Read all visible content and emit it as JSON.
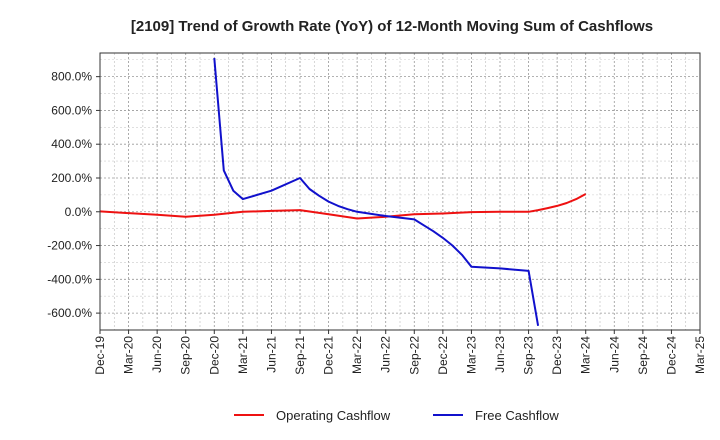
{
  "chart_data": {
    "type": "line",
    "title": "[2109]  Trend of Growth Rate (YoY) of 12-Month Moving Sum of Cashflows",
    "xlabel": "",
    "ylabel": "",
    "ylim": [
      -700,
      940
    ],
    "y_ticks": [
      800,
      600,
      400,
      200,
      0,
      -200,
      -400,
      -600
    ],
    "y_tick_labels": [
      "800.0%",
      "600.0%",
      "400.0%",
      "200.0%",
      "0.0%",
      "-200.0%",
      "-400.0%",
      "-600.0%"
    ],
    "x_tick_labels": [
      "Dec-19",
      "Mar-20",
      "Jun-20",
      "Sep-20",
      "Dec-20",
      "Mar-21",
      "Jun-21",
      "Sep-21",
      "Dec-21",
      "Mar-22",
      "Jun-22",
      "Sep-22",
      "Dec-22",
      "Mar-23",
      "Jun-23",
      "Sep-23",
      "Dec-23",
      "Mar-24",
      "Jun-24",
      "Sep-24",
      "Dec-24",
      "Mar-25"
    ],
    "grid": true,
    "legend_position": "bottom",
    "series": [
      {
        "name": "Operating Cashflow",
        "color": "#ee1111",
        "points": [
          [
            "Dec-19",
            2
          ],
          [
            "Mar-20",
            -8
          ],
          [
            "Jun-20",
            -18
          ],
          [
            "Sep-20",
            -30
          ],
          [
            "Dec-20",
            -18
          ],
          [
            "Mar-21",
            0
          ],
          [
            "Jun-21",
            5
          ],
          [
            "Sep-21",
            10
          ],
          [
            "Dec-21",
            -15
          ],
          [
            "Mar-22",
            -40
          ],
          [
            "Jun-22",
            -30
          ],
          [
            "Sep-22",
            -15
          ],
          [
            "Dec-22",
            -10
          ],
          [
            "Mar-23",
            -2
          ],
          [
            "Jun-23",
            0
          ],
          [
            "Sep-23",
            0
          ],
          [
            "Oct-23",
            10
          ],
          [
            "Nov-23",
            22
          ],
          [
            "Dec-23",
            35
          ],
          [
            "Jan-24",
            52
          ],
          [
            "Feb-24",
            75
          ],
          [
            "Mar-24",
            105
          ]
        ]
      },
      {
        "name": "Free Cashflow",
        "color": "#1111cc",
        "points": [
          [
            "Dec-20",
            910
          ],
          [
            "Jan-21",
            245
          ],
          [
            "Feb-21",
            125
          ],
          [
            "Mar-21",
            75
          ],
          [
            "Jun-21",
            125
          ],
          [
            "Sep-21",
            200
          ],
          [
            "Oct-21",
            135
          ],
          [
            "Nov-21",
            95
          ],
          [
            "Dec-21",
            60
          ],
          [
            "Jan-22",
            35
          ],
          [
            "Feb-22",
            15
          ],
          [
            "Mar-22",
            0
          ],
          [
            "Jun-22",
            -25
          ],
          [
            "Sep-22",
            -45
          ],
          [
            "Oct-22",
            -80
          ],
          [
            "Nov-22",
            -115
          ],
          [
            "Dec-22",
            -155
          ],
          [
            "Jan-23",
            -200
          ],
          [
            "Feb-23",
            -255
          ],
          [
            "Mar-23",
            -325
          ],
          [
            "Jun-23",
            -335
          ],
          [
            "Sep-23",
            -350
          ],
          [
            "Oct-23",
            -675
          ]
        ]
      }
    ]
  }
}
